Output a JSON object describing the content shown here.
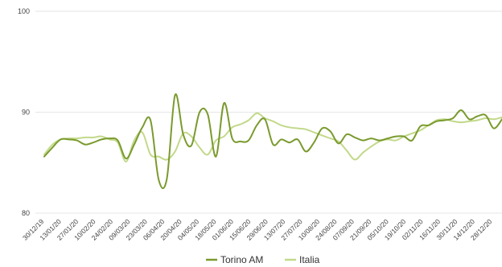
{
  "chart_data": {
    "type": "line",
    "title": "",
    "xlabel": "",
    "ylabel": "",
    "ylim": [
      80,
      100
    ],
    "yticks": [
      "80",
      "90",
      "100"
    ],
    "grid": "horizontal",
    "legend_position": "bottom",
    "x_tick_labels": [
      "30/12/19",
      "13/01/20",
      "27/01/20",
      "10/02/20",
      "24/02/20",
      "09/03/20",
      "23/03/20",
      "06/04/20",
      "20/04/20",
      "04/05/20",
      "18/05/20",
      "01/06/20",
      "15/06/20",
      "29/06/20",
      "13/07/20",
      "27/07/20",
      "10/08/20",
      "24/08/20",
      "07/09/20",
      "21/09/20",
      "05/10/20",
      "19/10/20",
      "02/11/20",
      "16/11/20",
      "30/11/20",
      "14/12/20",
      "28/12/20"
    ],
    "series": [
      {
        "name": "Torino AM",
        "color": "#7a9a2e",
        "values": [
          85.6,
          86.5,
          87.3,
          87.3,
          87.2,
          86.8,
          87.0,
          87.3,
          87.4,
          87.2,
          85.4,
          86.8,
          88.5,
          89.2,
          83.3,
          83.4,
          91.7,
          87.8,
          86.7,
          90.0,
          89.8,
          85.6,
          90.9,
          87.4,
          87.1,
          87.2,
          88.7,
          89.3,
          86.8,
          87.3,
          87.0,
          87.3,
          86.1,
          87.0,
          88.4,
          88.1,
          86.9,
          87.8,
          87.5,
          87.2,
          87.4,
          87.2,
          87.4,
          87.6,
          87.6,
          87.2,
          88.6,
          88.7,
          89.1,
          89.2,
          89.4,
          90.2,
          89.3,
          89.6,
          89.7,
          88.4,
          89.3
        ]
      },
      {
        "name": "Italia",
        "color": "#c2d98a",
        "values": [
          85.8,
          86.8,
          87.3,
          87.4,
          87.4,
          87.5,
          87.5,
          87.6,
          87.3,
          87.0,
          85.1,
          87.2,
          88.0,
          85.8,
          85.6,
          85.3,
          86.1,
          87.9,
          87.6,
          86.5,
          85.8,
          87.2,
          87.6,
          88.5,
          88.8,
          89.2,
          89.9,
          89.4,
          89.1,
          88.7,
          88.5,
          88.4,
          88.3,
          88.0,
          87.7,
          87.4,
          87.1,
          86.2,
          85.3,
          86.0,
          86.6,
          87.1,
          87.3,
          87.2,
          87.6,
          87.9,
          88.2,
          88.7,
          89.2,
          89.3,
          89.1,
          89.0,
          89.1,
          89.2,
          89.4,
          89.3,
          89.5
        ]
      }
    ]
  }
}
